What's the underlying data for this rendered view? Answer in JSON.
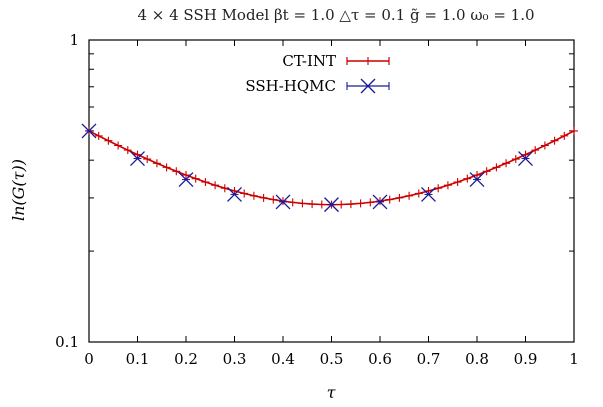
{
  "chart_data": {
    "type": "line",
    "title": "4 × 4 SSH Model     βt = 1.0     △τ = 0.1     g̃ = 1.0     ω₀ = 1.0",
    "xlabel": "τ",
    "ylabel": "ln(G(τ))",
    "xlim": [
      0,
      1
    ],
    "ylim": [
      0.1,
      1
    ],
    "y_scale": "log",
    "x_ticks": [
      "0",
      "0.1",
      "0.2",
      "0.3",
      "0.4",
      "0.5",
      "0.6",
      "0.7",
      "0.8",
      "0.9",
      "1"
    ],
    "y_ticks": [
      "0.1",
      "1"
    ],
    "legend_position": "top-center",
    "series": [
      {
        "name": "CT-INT",
        "color": "#cc0000",
        "marker": "plus",
        "x_step": 0.02,
        "x_start": 0,
        "x_end": 1,
        "curve_model": "cosh",
        "value_at_0": 0.5,
        "value_at_half": 0.285
      },
      {
        "name": "SSH-HQMC",
        "color": "#1a1a99",
        "marker": "x",
        "x": [
          0,
          0.1,
          0.2,
          0.3,
          0.4,
          0.5,
          0.6,
          0.7,
          0.8,
          0.9
        ],
        "y": [
          0.5,
          0.405,
          0.345,
          0.308,
          0.291,
          0.285,
          0.291,
          0.308,
          0.345,
          0.405
        ]
      }
    ]
  }
}
